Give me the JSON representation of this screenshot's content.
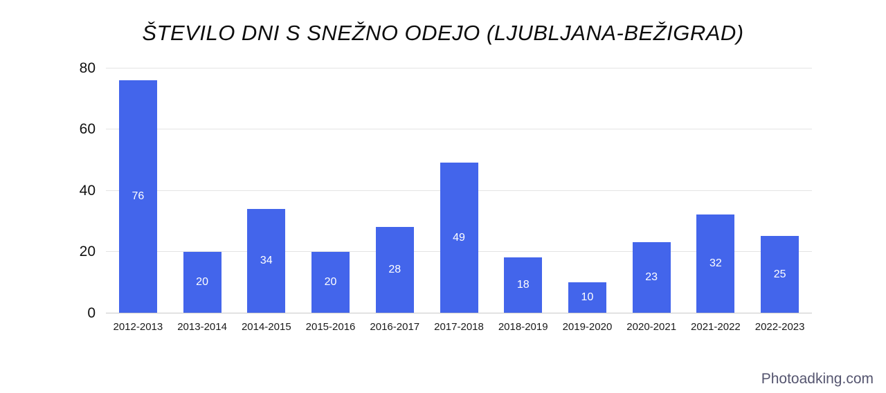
{
  "title": "ŠTEVILO DNI S SNEŽNO ODEJO (LJUBLJANA-BEŽIGRAD)",
  "watermark": "Photoadking.com",
  "colors": {
    "bar": "#4365eb",
    "bar_label": "#ffffff",
    "gridline": "#e4e4e4",
    "axis_line": "#c9c9c9",
    "axis_text": "#111111",
    "title_text": "#0d0d0d",
    "watermark_text": "#55556f",
    "background": "#ffffff"
  },
  "chart_data": {
    "type": "bar",
    "title": "ŠTEVILO DNI S SNEŽNO ODEJO (LJUBLJANA-BEŽIGRAD)",
    "categories": [
      "2012-2013",
      "2013-2014",
      "2014-2015",
      "2015-2016",
      "2016-2017",
      "2017-2018",
      "2018-2019",
      "2019-2020",
      "2020-2021",
      "2021-2022",
      "2022-2023"
    ],
    "values": [
      76,
      20,
      34,
      20,
      28,
      49,
      18,
      10,
      23,
      32,
      25
    ],
    "xlabel": "",
    "ylabel": "",
    "ylim": [
      0,
      80
    ],
    "yticks": [
      0,
      20,
      40,
      60,
      80
    ],
    "grid": true,
    "legend": false,
    "bar_labels_visible": true,
    "bar_label_position": "center"
  }
}
